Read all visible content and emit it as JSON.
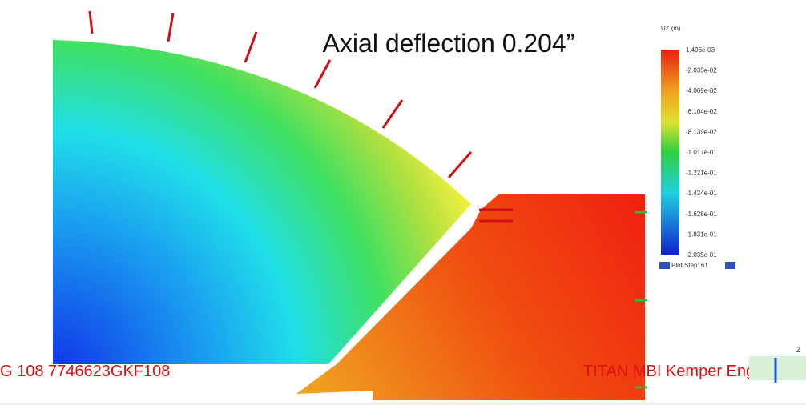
{
  "title": "Axial deflection 0.204”",
  "legend": {
    "title": "UZ (in)",
    "labels": [
      "1.496e-03",
      "-2.035e-02",
      "-4.069e-02",
      "-6.104e-02",
      "-8.139e-02",
      "-1.017e-01",
      "-1.221e-01",
      "-1.424e-01",
      "-1.628e-01",
      "-1.831e-01",
      "-2.035e-01"
    ],
    "step": "Plot Step: 61"
  },
  "footer": {
    "left": "G 108 7746623GKF108",
    "right": "TITAN MBI Kemper Eng"
  },
  "axis_label": "Z"
}
